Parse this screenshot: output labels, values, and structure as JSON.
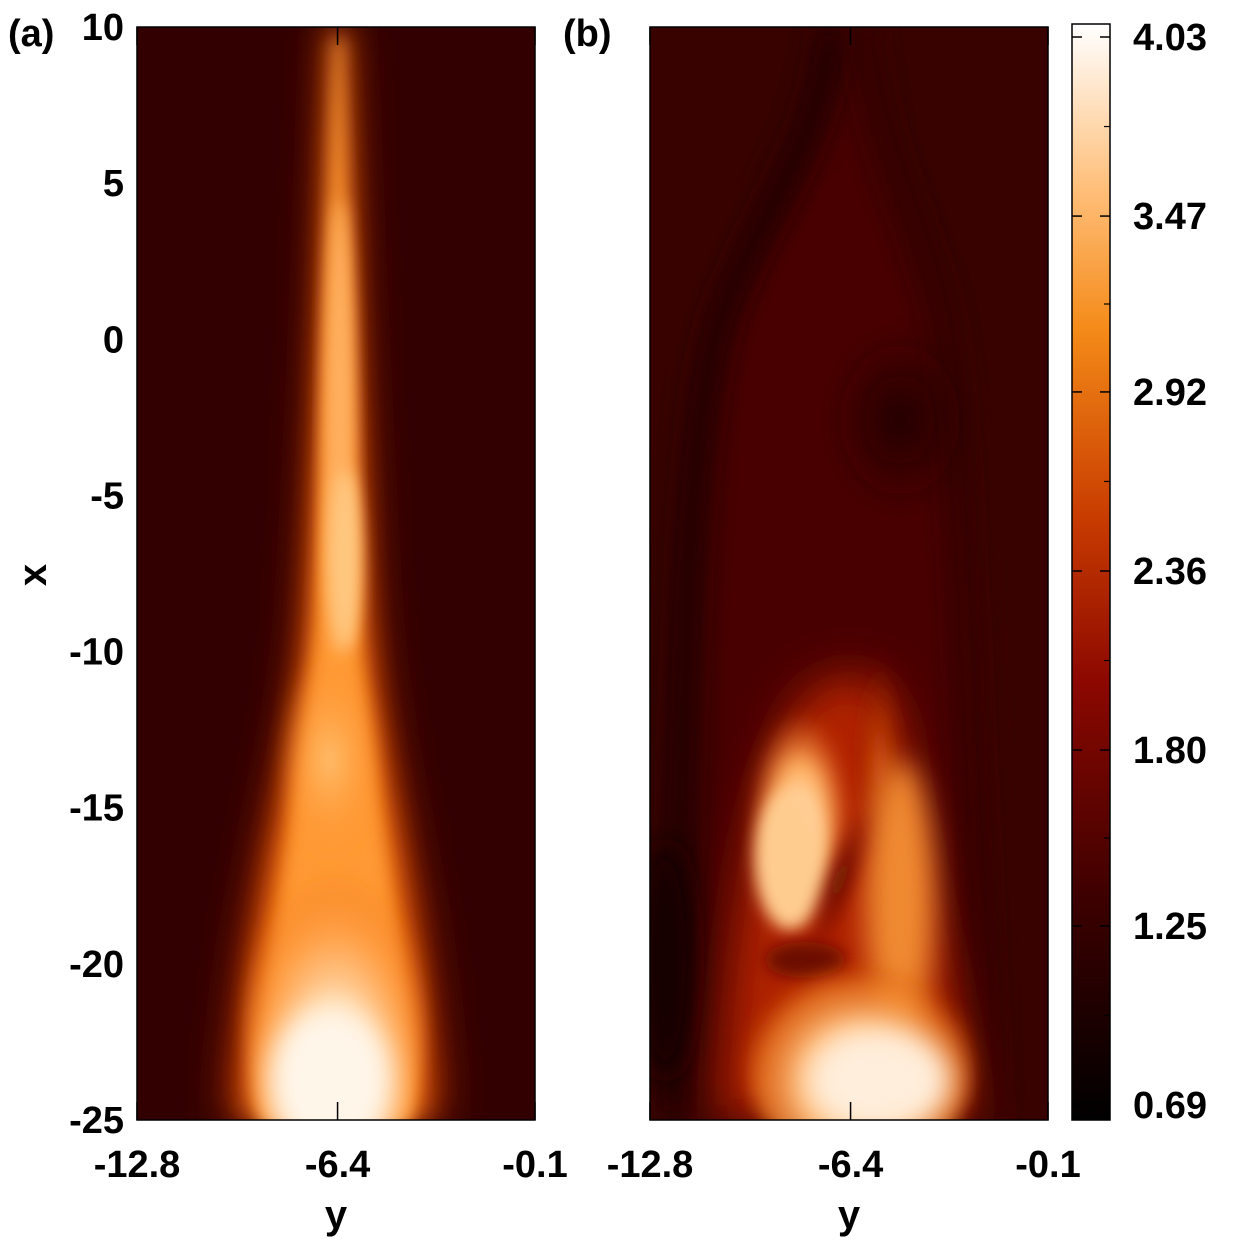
{
  "chart_data": [
    {
      "type": "heatmap",
      "panel_label": "(a)",
      "xlabel": "y",
      "ylabel": "x",
      "x_ticks": [
        "-12.8",
        "-6.4",
        "-0.1"
      ],
      "y_ticks": [
        "10",
        "5",
        "0",
        "-5",
        "-10",
        "-15",
        "-20",
        "-25"
      ],
      "xlim": [
        -12.8,
        -0.1
      ],
      "ylim": [
        -25,
        10
      ],
      "features": [
        {
          "kind": "jet",
          "x_range": [
            -25,
            10
          ],
          "center_y": -6.4,
          "peak_value": 4.03,
          "description_note": ""
        }
      ]
    },
    {
      "type": "heatmap",
      "panel_label": "(b)",
      "xlabel": "y",
      "ylabel": "",
      "x_ticks": [
        "-12.8",
        "-6.4",
        "-0.1"
      ],
      "xlim": [
        -12.8,
        -0.1
      ],
      "ylim": [
        -25,
        10
      ]
    }
  ],
  "colorbar": {
    "ticks": [
      "4.03",
      "3.47",
      "2.92",
      "2.36",
      "1.80",
      "1.25",
      "0.69"
    ],
    "min": 0.69,
    "max": 4.03,
    "colormap": [
      "#000000",
      "#5a0000",
      "#b01000",
      "#f07818",
      "#ffb050",
      "#ffffff"
    ]
  },
  "colors": {
    "background_field": "#320000",
    "hot": "#fff4e6"
  }
}
